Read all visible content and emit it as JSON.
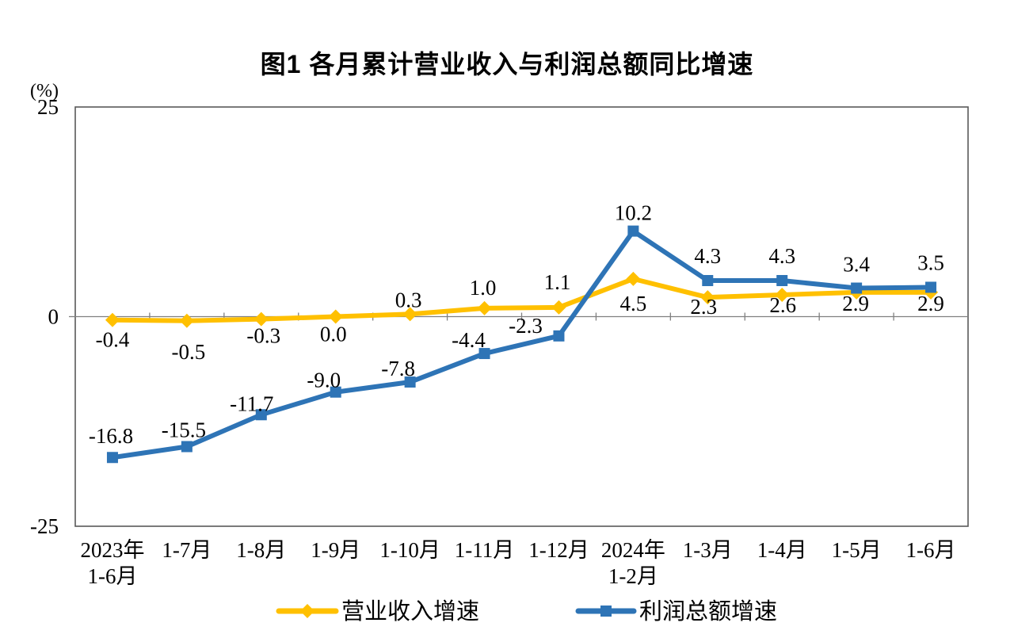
{
  "title": "图1  各月累计营业收入与利润总额同比增速",
  "chart_data": {
    "type": "line",
    "title": "图1  各月累计营业收入与利润总额同比增速",
    "ylabel": "(%)",
    "ylim": [
      -25,
      25
    ],
    "y_ticks": [
      25,
      0,
      -25
    ],
    "grid": "zero-line-only",
    "axis_color": "#595959",
    "zero_line_color": "#808080",
    "legend_position": "bottom",
    "categories": [
      [
        "2023年",
        "1-6月"
      ],
      [
        "1-7月"
      ],
      [
        "1-8月"
      ],
      [
        "1-9月"
      ],
      [
        "1-10月"
      ],
      [
        "1-11月"
      ],
      [
        "1-12月"
      ],
      [
        "2024年",
        "1-2月"
      ],
      [
        "1-3月"
      ],
      [
        "1-4月"
      ],
      [
        "1-5月"
      ],
      [
        "1-6月"
      ]
    ],
    "series": [
      {
        "id": "revenue-growth",
        "name": "营业收入增速",
        "color": "#FFC000",
        "marker": "diamond",
        "values": [
          -0.4,
          -0.5,
          -0.3,
          0.0,
          0.3,
          1.0,
          1.1,
          4.5,
          2.3,
          2.6,
          2.9,
          2.9
        ],
        "label_offsets": [
          [
            0,
            34
          ],
          [
            2,
            48
          ],
          [
            3,
            30
          ],
          [
            -3,
            31
          ],
          [
            -2,
            -9
          ],
          [
            -2,
            -17
          ],
          [
            -2,
            -23
          ],
          [
            0,
            40
          ],
          [
            -5,
            21
          ],
          [
            1,
            22
          ],
          [
            -1,
            23
          ],
          [
            0,
            23
          ]
        ]
      },
      {
        "id": "profit-growth",
        "name": "利润总额增速",
        "color": "#2E74B6",
        "marker": "square",
        "values": [
          -16.8,
          -15.5,
          -11.7,
          -9.0,
          -7.8,
          -4.4,
          -2.3,
          10.2,
          4.3,
          4.3,
          3.4,
          3.5
        ],
        "label_offsets": [
          [
            -2,
            -18
          ],
          [
            -4,
            -12
          ],
          [
            -12,
            -5
          ],
          [
            -15,
            -6
          ],
          [
            -15,
            -8
          ],
          [
            -20,
            -8
          ],
          [
            -42,
            -4
          ],
          [
            0,
            -14
          ],
          [
            0,
            -22
          ],
          [
            0,
            -22
          ],
          [
            0,
            -21
          ],
          [
            0,
            -22
          ]
        ]
      }
    ]
  }
}
